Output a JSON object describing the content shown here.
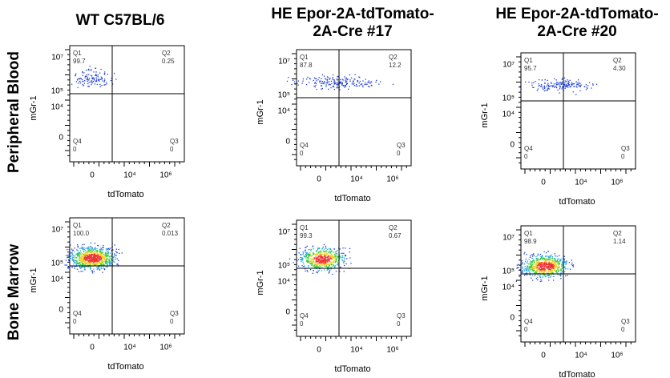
{
  "columns": [
    [
      "WT C57BL/6"
    ],
    [
      "HE Epor-2A-tdTomato-",
      "2A-Cre #17"
    ],
    [
      "HE Epor-2A-tdTomato-",
      "2A-Cre #20"
    ]
  ],
  "rows": [
    "Peripheral Blood",
    "Bone Marrow"
  ],
  "y_label": "mGr-1",
  "x_label": "tdTomato",
  "quadrant_names": [
    "Q1",
    "Q2",
    "Q3",
    "Q4"
  ],
  "y_ticks": [
    "10⁷",
    "10⁵",
    "10⁴",
    "0"
  ],
  "x_ticks": [
    "0",
    "10⁴",
    "10⁶"
  ],
  "panels": [
    [
      {
        "q1": "99.7",
        "q2": "0.25",
        "q3": "0",
        "q4": "0"
      },
      {
        "q1": "87.8",
        "q2": "12.2",
        "q3": "0",
        "q4": "0"
      },
      {
        "q1": "95.7",
        "q2": "4.30",
        "q3": "0",
        "q4": "0"
      }
    ],
    [
      {
        "q1": "100.0",
        "q2": "0.013",
        "q3": "0",
        "q4": "0"
      },
      {
        "q1": "99.3",
        "q2": "0.67",
        "q3": "0",
        "q4": "0"
      },
      {
        "q1": "98.9",
        "q2": "1.14",
        "q3": "0",
        "q4": "0"
      }
    ]
  ]
}
